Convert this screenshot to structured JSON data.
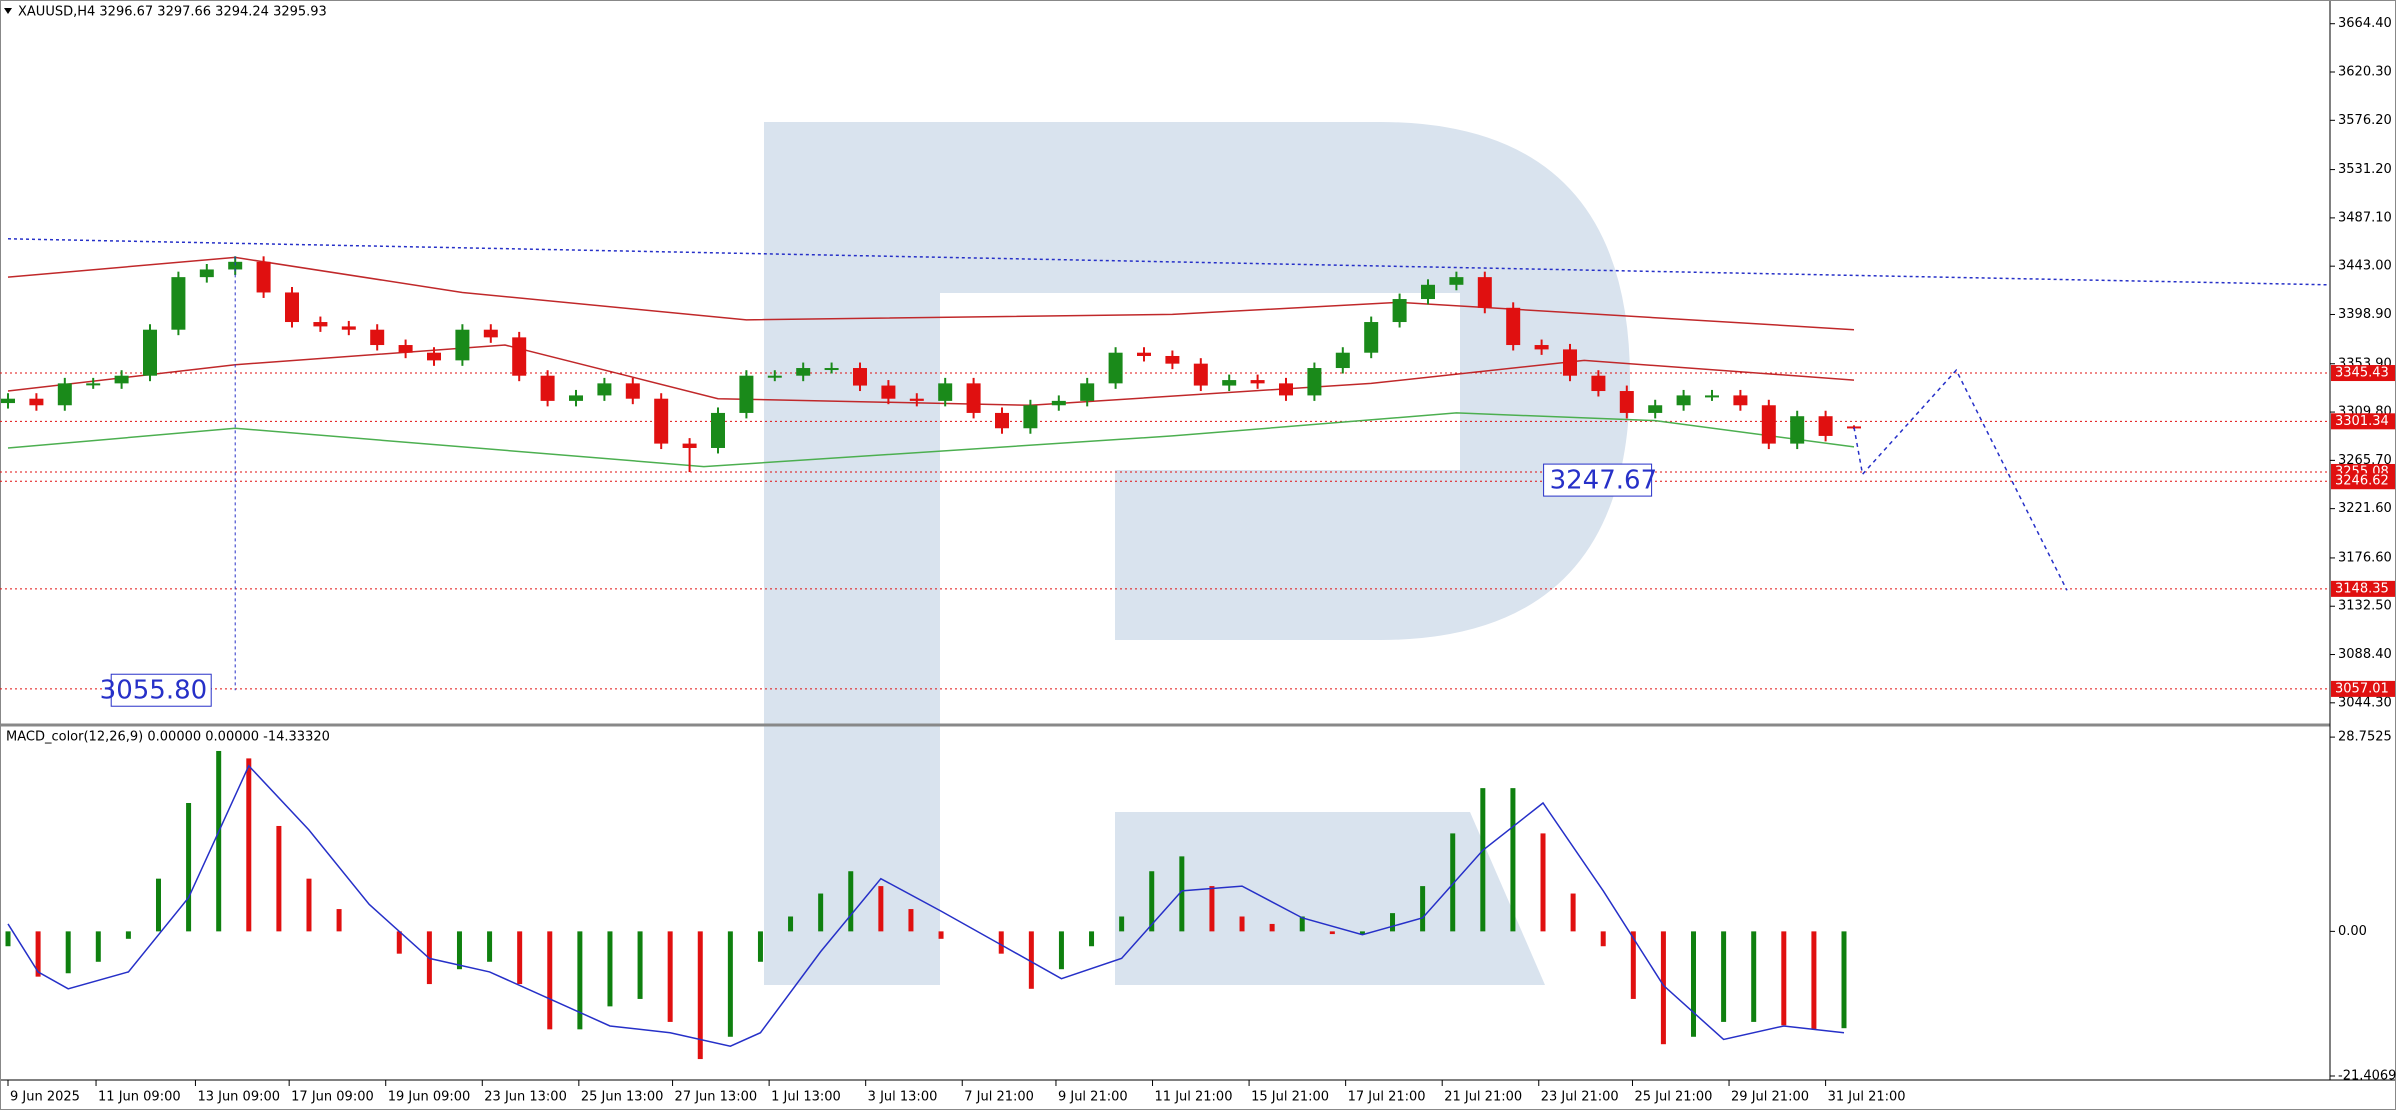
{
  "chart_data": [
    {
      "type": "candlestick",
      "title": "XAUUSD,H4  3296.67 3297.66 3294.24 3295.93",
      "open": [
        3318,
        3322,
        3316,
        3336,
        3336,
        3343,
        3385,
        3433,
        3440,
        3447,
        3419,
        3392,
        3388,
        3385,
        3371,
        3364,
        3357,
        3385,
        3378,
        3343,
        3320,
        3325,
        3336,
        3322,
        3281,
        3277,
        3309,
        3343,
        3343,
        3350,
        3350,
        3334,
        3322,
        3320,
        3336,
        3309,
        3295,
        3316,
        3320,
        3336,
        3364,
        3361,
        3354,
        3334,
        3339,
        3336,
        3325,
        3350,
        3364,
        3392,
        3413,
        3426,
        3433,
        3405,
        3371,
        3367,
        3343,
        3329,
        3309,
        3316,
        3325,
        3325,
        3316,
        3281,
        3306,
        3296.67
      ],
      "high": [
        3327,
        3327,
        3341,
        3341,
        3348,
        3390,
        3438,
        3445,
        3452,
        3452,
        3424,
        3397,
        3393,
        3390,
        3376,
        3369,
        3390,
        3390,
        3383,
        3348,
        3330,
        3341,
        3341,
        3327,
        3286,
        3314,
        3348,
        3348,
        3355,
        3355,
        3355,
        3339,
        3327,
        3341,
        3341,
        3314,
        3321,
        3325,
        3341,
        3369,
        3369,
        3366,
        3359,
        3344,
        3344,
        3341,
        3355,
        3369,
        3397,
        3418,
        3431,
        3438,
        3438,
        3410,
        3376,
        3372,
        3348,
        3334,
        3321,
        3330,
        3330,
        3330,
        3321,
        3311,
        3311,
        3297.66
      ],
      "low": [
        3313,
        3311,
        3311,
        3331,
        3331,
        3338,
        3380,
        3428,
        3435,
        3414,
        3387,
        3383,
        3380,
        3366,
        3359,
        3352,
        3352,
        3373,
        3338,
        3315,
        3315,
        3320,
        3317,
        3276,
        3255,
        3272,
        3304,
        3338,
        3338,
        3345,
        3329,
        3317,
        3315,
        3315,
        3304,
        3290,
        3290,
        3311,
        3315,
        3331,
        3356,
        3349,
        3329,
        3329,
        3331,
        3320,
        3320,
        3345,
        3359,
        3387,
        3408,
        3421,
        3400,
        3366,
        3362,
        3338,
        3324,
        3304,
        3304,
        3311,
        3320,
        3311,
        3276,
        3276,
        3283,
        3294.24
      ],
      "close": [
        3322,
        3316,
        3336,
        3336,
        3343,
        3385,
        3433,
        3440,
        3447,
        3419,
        3392,
        3388,
        3385,
        3371,
        3364,
        3357,
        3385,
        3378,
        3343,
        3320,
        3325,
        3336,
        3322,
        3281,
        3277,
        3309,
        3343,
        3343,
        3350,
        3350,
        3334,
        3322,
        3320,
        3336,
        3309,
        3295,
        3316,
        3320,
        3336,
        3364,
        3361,
        3354,
        3334,
        3339,
        3336,
        3325,
        3350,
        3364,
        3392,
        3413,
        3426,
        3433,
        3405,
        3371,
        3367,
        3343,
        3329,
        3309,
        3316,
        3325,
        3325,
        3316,
        3281,
        3306,
        3288,
        3295.93
      ],
      "up_color": "#1a8a1a",
      "down_color": "#e01010",
      "ylim": [
        3027.7,
        3682.4
      ],
      "yticks": [
        {
          "value": 3664.4,
          "label": "3664.40"
        },
        {
          "value": 3620.3,
          "label": "3620.30"
        },
        {
          "value": 3576.2,
          "label": "3576.20"
        },
        {
          "value": 3531.2,
          "label": "3531.20"
        },
        {
          "value": 3487.1,
          "label": "3487.10"
        },
        {
          "value": 3443,
          "label": "3443.00"
        },
        {
          "value": 3398.9,
          "label": "3398.90"
        },
        {
          "value": 3353.9,
          "label": "3353.90"
        },
        {
          "value": 3309.8,
          "label": "3309.80"
        },
        {
          "value": 3265.7,
          "label": "3265.70"
        },
        {
          "value": 3221.6,
          "label": "3221.60"
        },
        {
          "value": 3176.6,
          "label": "3176.60"
        },
        {
          "value": 3132.5,
          "label": "3132.50"
        },
        {
          "value": 3088.4,
          "label": "3088.40"
        },
        {
          "value": 3044.3,
          "label": "3044.30"
        }
      ],
      "xticks": [
        {
          "value": 0,
          "label": "9 Jun 2025"
        },
        {
          "value": 3.1,
          "label": "11 Jun 09:00"
        },
        {
          "value": 6.6,
          "label": "13 Jun 09:00"
        },
        {
          "value": 9.9,
          "label": "17 Jun 09:00"
        },
        {
          "value": 13.3,
          "label": "19 Jun 09:00"
        },
        {
          "value": 16.7,
          "label": "23 Jun 13:00"
        },
        {
          "value": 20.1,
          "label": "25 Jun 13:00"
        },
        {
          "value": 23.4,
          "label": "27 Jun 13:00"
        },
        {
          "value": 26.8,
          "label": "1 Jul 13:00"
        },
        {
          "value": 30.2,
          "label": "3 Jul 13:00"
        },
        {
          "value": 33.6,
          "label": "7 Jul 21:00"
        },
        {
          "value": 36.9,
          "label": "9 Jul 21:00"
        },
        {
          "value": 40.3,
          "label": "11 Jul 21:00"
        },
        {
          "value": 43.7,
          "label": "15 Jul 21:00"
        },
        {
          "value": 47.1,
          "label": "17 Jul 21:00"
        },
        {
          "value": 50.5,
          "label": "21 Jul 21:00"
        },
        {
          "value": 53.9,
          "label": "23 Jul 21:00"
        },
        {
          "value": 57.2,
          "label": "25 Jul 21:00"
        },
        {
          "value": 60.6,
          "label": "29 Jul 21:00"
        },
        {
          "value": 64,
          "label": "31 Jul 21:00"
        }
      ],
      "overlays": [
        {
          "color": "#c0282a",
          "x": [
            0,
            8,
            16,
            26,
            41,
            49,
            65
          ],
          "values": [
            3433,
            3451,
            3419,
            3394,
            3399,
            3410,
            3385
          ]
        },
        {
          "color": "#c0282a",
          "x": [
            0,
            8,
            17.5,
            25,
            36,
            48,
            55.5,
            65
          ],
          "values": [
            3329,
            3353,
            3371,
            3322,
            3316,
            3336,
            3357,
            3339
          ]
        },
        {
          "color": "#4caf50",
          "x": [
            0,
            8,
            24.5,
            41,
            51,
            58,
            65
          ],
          "values": [
            3277,
            3295,
            3260,
            3288,
            3309,
            3302,
            3278
          ]
        },
        {
          "color": "#2630c8",
          "dash": true,
          "x": [
            0,
            81.7
          ],
          "values": [
            3468,
            3426
          ]
        }
      ],
      "levels": [
        3345.43,
        3301.34,
        3255.08,
        3246.62,
        3148.35,
        3057.01
      ],
      "level_color": "#e01010",
      "forecast": {
        "color": "#2630c8",
        "x": [
          65,
          65.3,
          68.6,
          72.5
        ],
        "values": [
          3295.93,
          3253,
          3348,
          3147
        ]
      },
      "annotations": [
        3247.67,
        {
          "value": 3055.8,
          "label": "3055.80"
        }
      ]
    },
    {
      "type": "macd",
      "title": "MACD_color(12,26,9) 0.00000 0.00000 -14.33320",
      "values": [
        -2.2,
        -6.7,
        -6.2,
        -4.5,
        -1.1,
        7.8,
        19,
        26.7,
        25.6,
        15.6,
        7.8,
        3.3,
        0,
        -3.3,
        -7.8,
        -5.6,
        -4.5,
        -7.8,
        -14.5,
        -14.5,
        -11.1,
        -10,
        -13.4,
        -18.9,
        -15.6,
        -4.5,
        2.2,
        5.6,
        8.9,
        6.7,
        3.3,
        -1.1,
        0,
        -3.3,
        -8.5,
        -5.6,
        -2.2,
        2.2,
        8.9,
        11.1,
        6.7,
        2.2,
        1.1,
        2.2,
        -0.4,
        -0.4,
        2.7,
        6.7,
        14.5,
        21.2,
        21.2,
        14.5,
        5.6,
        -2.2,
        -10,
        -16.7,
        -15.6,
        -13.4,
        -13.4,
        -13.9,
        -14.5,
        -14.33
      ],
      "up_color": "#0f800f",
      "down_color": "#e01010",
      "signal": {
        "color": "#2630c8",
        "x": [
          0,
          1,
          2,
          4,
          6,
          8,
          10,
          12,
          14,
          16,
          18,
          20,
          22,
          24,
          25,
          27,
          29,
          31,
          33,
          35,
          37,
          39,
          41,
          43,
          45,
          47,
          49,
          51,
          53,
          55,
          57,
          59,
          61
        ],
        "values": [
          1.1,
          -6,
          -8.5,
          -6,
          5,
          24.5,
          15,
          4,
          -4,
          -6,
          -10,
          -14,
          -15,
          -17,
          -15,
          -3,
          7.8,
          3,
          -2,
          -7,
          -4,
          6,
          6.7,
          2,
          -0.5,
          2,
          12,
          19,
          6,
          -8,
          -16,
          -14,
          -15
        ]
      },
      "ylim": [
        -21.85,
        30.1
      ],
      "yticks": [
        28.7525,
        {
          "value": 0,
          "label": "0.00"
        },
        -21.40694
      ]
    }
  ]
}
